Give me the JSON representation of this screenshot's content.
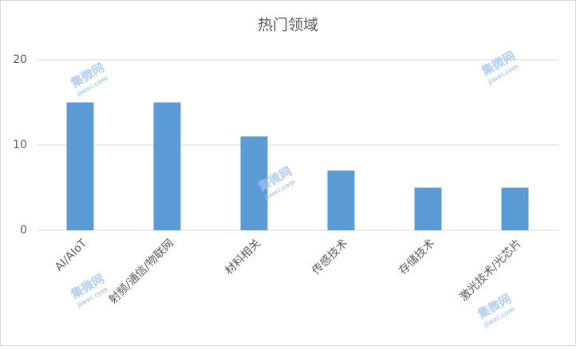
{
  "chart_data": {
    "type": "bar",
    "title": "热门领域",
    "categories": [
      "AI/AIoT",
      "射频/通信/物联网",
      "材料相关",
      "传感技术",
      "存储技术",
      "激光技术/光芯片"
    ],
    "values": [
      15,
      15,
      11,
      7,
      5,
      5
    ],
    "color": "#5b9bd5",
    "ylim": [
      0,
      20
    ],
    "yticks": [
      0,
      10,
      20
    ],
    "grid": true
  },
  "watermark": {
    "name": "集微网",
    "url": "jiwei.com"
  }
}
